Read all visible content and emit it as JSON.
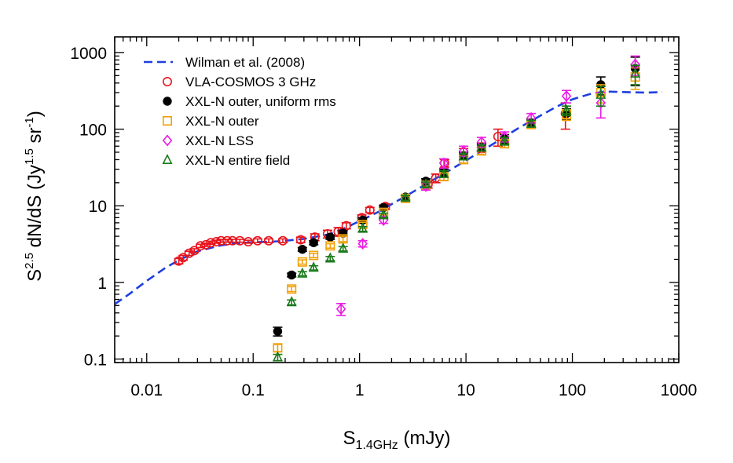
{
  "chart_data": {
    "type": "scatter",
    "title": "",
    "xlabel": {
      "main": "S",
      "sub": "1.4GHz",
      "unit": " (mJy)"
    },
    "ylabel": {
      "main": "S",
      "sup": "2.5",
      "rest": " dN/dS  (Jy",
      "sup2": "1.5",
      "rest2": " sr",
      "sup3": "-1",
      "close": ")"
    },
    "xscale": "log",
    "yscale": "log",
    "xlim": [
      0.005,
      1000
    ],
    "ylim": [
      0.09,
      1600
    ],
    "x_ticks": [
      {
        "value": 0.01,
        "label": "0.01"
      },
      {
        "value": 0.1,
        "label": "0.1"
      },
      {
        "value": 1,
        "label": "1"
      },
      {
        "value": 10,
        "label": "10"
      },
      {
        "value": 100,
        "label": "100"
      },
      {
        "value": 1000,
        "label": "1000"
      }
    ],
    "y_ticks": [
      {
        "value": 0.1,
        "label": "0.1"
      },
      {
        "value": 1,
        "label": "1"
      },
      {
        "value": 10,
        "label": "10"
      },
      {
        "value": 100,
        "label": "100"
      },
      {
        "value": 1000,
        "label": "1000"
      }
    ],
    "legend_position": "top-left",
    "series": [
      {
        "name": "Wilman et al. (2008)",
        "kind": "line",
        "style": "dashed",
        "color": "#1f3fe0",
        "x": [
          0.005,
          0.007,
          0.01,
          0.015,
          0.02,
          0.03,
          0.05,
          0.07,
          0.1,
          0.15,
          0.2,
          0.3,
          0.5,
          0.7,
          1.0,
          1.5,
          2,
          3,
          5,
          7,
          10,
          15,
          20,
          30,
          50,
          70,
          100,
          150,
          200,
          300,
          500,
          700
        ],
        "y": [
          0.52,
          0.72,
          1.05,
          1.55,
          1.95,
          2.55,
          3.05,
          3.25,
          3.35,
          3.4,
          3.5,
          3.7,
          4.2,
          5.0,
          6.3,
          8.3,
          10.5,
          14.5,
          22,
          29,
          39,
          55,
          70,
          100,
          150,
          195,
          245,
          290,
          310,
          305,
          300,
          305
        ]
      },
      {
        "name": "VLA-COSMOS 3 GHz",
        "kind": "points",
        "marker": "circle-open",
        "color": "#e8141c",
        "points": [
          [
            0.02,
            1.9,
            0.15
          ],
          [
            0.022,
            2.1,
            0.15
          ],
          [
            0.025,
            2.4,
            0.15
          ],
          [
            0.028,
            2.6,
            0.15
          ],
          [
            0.032,
            3.0,
            0.15
          ],
          [
            0.036,
            3.1,
            0.15
          ],
          [
            0.04,
            3.3,
            0.15
          ],
          [
            0.045,
            3.4,
            0.15
          ],
          [
            0.05,
            3.5,
            0.15
          ],
          [
            0.057,
            3.5,
            0.15
          ],
          [
            0.064,
            3.5,
            0.15
          ],
          [
            0.075,
            3.5,
            0.15
          ],
          [
            0.09,
            3.4,
            0.15
          ],
          [
            0.11,
            3.5,
            0.2
          ],
          [
            0.14,
            3.5,
            0.2
          ],
          [
            0.19,
            3.5,
            0.2
          ],
          [
            0.28,
            3.6,
            0.3
          ],
          [
            0.38,
            3.9,
            0.4
          ],
          [
            0.5,
            4.3,
            0.5
          ],
          [
            0.63,
            4.6,
            0.6
          ],
          [
            0.75,
            5.5,
            0.5
          ],
          [
            1.05,
            7.0,
            0.6
          ],
          [
            1.25,
            8.8,
            0.7
          ],
          [
            1.75,
            9.8,
            0.8
          ],
          [
            2.7,
            12.8,
            1.0
          ],
          [
            4.4,
            19.0,
            2.0
          ],
          [
            5.2,
            23.0,
            3.0
          ],
          [
            6.3,
            36.0,
            4.0
          ],
          [
            9.5,
            50.0,
            6.0
          ],
          [
            14,
            58.0,
            8.0
          ],
          [
            20,
            80.0,
            20.0
          ],
          [
            86,
            160.0,
            60.0
          ]
        ]
      },
      {
        "name": "XXL-N outer, uniform rms",
        "kind": "points",
        "marker": "circle-filled",
        "color": "#000000",
        "points": [
          [
            0.17,
            0.23,
            0.03
          ],
          [
            0.23,
            1.25,
            0.07
          ],
          [
            0.29,
            2.7,
            0.15
          ],
          [
            0.37,
            3.3,
            0.2
          ],
          [
            0.53,
            3.9,
            0.25
          ],
          [
            0.7,
            4.4,
            0.3
          ],
          [
            1.07,
            6.5,
            0.5
          ],
          [
            1.68,
            9.5,
            0.7
          ],
          [
            2.7,
            13.0,
            1.0
          ],
          [
            4.2,
            21.0,
            1.5
          ],
          [
            6.2,
            27.0,
            3.0
          ],
          [
            9.5,
            45.0,
            5.0
          ],
          [
            14,
            58.0,
            6.0
          ],
          [
            23,
            75.0,
            10.0
          ],
          [
            41,
            120.0,
            15.0
          ],
          [
            88,
            160.0,
            25.0
          ],
          [
            185,
            380.0,
            100.0
          ],
          [
            390,
            620.0,
            250.0
          ]
        ]
      },
      {
        "name": "XXL-N outer",
        "kind": "points",
        "marker": "square-open",
        "color": "#f2a20c",
        "points": [
          [
            0.17,
            0.14,
            0.015
          ],
          [
            0.23,
            0.82,
            0.06
          ],
          [
            0.29,
            1.85,
            0.12
          ],
          [
            0.37,
            2.25,
            0.15
          ],
          [
            0.53,
            3.0,
            0.2
          ],
          [
            0.7,
            3.7,
            0.3
          ],
          [
            1.07,
            5.7,
            0.4
          ],
          [
            1.68,
            8.2,
            0.6
          ],
          [
            2.7,
            12.5,
            0.9
          ],
          [
            4.2,
            18.5,
            1.5
          ],
          [
            6.2,
            24.0,
            2.5
          ],
          [
            9.5,
            40.0,
            4.0
          ],
          [
            14,
            52.0,
            5.0
          ],
          [
            23,
            65.0,
            8.0
          ],
          [
            41,
            115.0,
            12.0
          ],
          [
            88,
            155.0,
            25.0
          ],
          [
            185,
            300.0,
            80.0
          ],
          [
            390,
            480.0,
            150.0
          ]
        ]
      },
      {
        "name": "XXL-N LSS",
        "kind": "points",
        "marker": "diamond-open",
        "color": "#ec1ce4",
        "points": [
          [
            0.67,
            0.45,
            0.08
          ],
          [
            1.07,
            3.2,
            0.3
          ],
          [
            1.68,
            6.5,
            0.6
          ],
          [
            4.2,
            18.0,
            2.0
          ],
          [
            6.2,
            36.0,
            5.0
          ],
          [
            9.5,
            52.0,
            8.0
          ],
          [
            14,
            68.0,
            10.0
          ],
          [
            23,
            80.0,
            12.0
          ],
          [
            41,
            140.0,
            20.0
          ],
          [
            88,
            270.0,
            50.0
          ],
          [
            185,
            220.0,
            80.0
          ],
          [
            390,
            700.0,
            200.0
          ]
        ]
      },
      {
        "name": "XXL-N entire field",
        "kind": "points",
        "marker": "triangle-open",
        "color": "#1a7a1a",
        "points": [
          [
            0.17,
            0.105,
            0.01
          ],
          [
            0.23,
            0.55,
            0.04
          ],
          [
            0.29,
            1.3,
            0.08
          ],
          [
            0.37,
            1.55,
            0.1
          ],
          [
            0.53,
            2.05,
            0.13
          ],
          [
            0.7,
            2.75,
            0.18
          ],
          [
            1.07,
            5.0,
            0.35
          ],
          [
            1.68,
            7.5,
            0.5
          ],
          [
            2.7,
            12.7,
            0.9
          ],
          [
            4.2,
            19.0,
            1.4
          ],
          [
            6.2,
            26.0,
            2.5
          ],
          [
            9.5,
            44.0,
            4.0
          ],
          [
            14,
            57.0,
            5.0
          ],
          [
            23,
            70.0,
            8.0
          ],
          [
            41,
            118.0,
            12.0
          ],
          [
            88,
            175.0,
            25.0
          ],
          [
            185,
            280.0,
            80.0
          ],
          [
            390,
            530.0,
            150.0
          ]
        ]
      }
    ]
  }
}
